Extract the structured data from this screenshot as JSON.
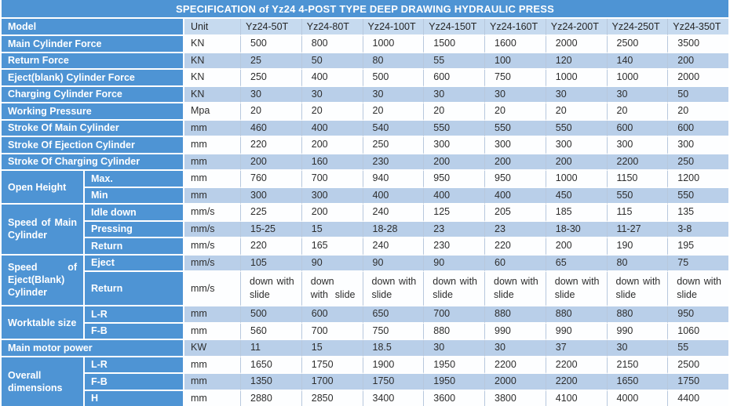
{
  "palette": {
    "c-blue": "#4e94d4",
    "c-hdr": "#c6daef",
    "c-rowblue": "#b9cfe9",
    "c-rowwhite": "#fdfeff",
    "c-grid": "#b7c8dd",
    "c-text": "#2d2d2d"
  },
  "title": "SPECIFICATION of Yz24 4-POST TYPE DEEP DRAWING HYDRAULIC PRESS",
  "header": {
    "model_label": "Model",
    "unit_label": "Unit",
    "models": [
      "Yz24-50T",
      "Yz24-80T",
      "Yz24-100T",
      "Yz24-150T",
      "Yz24-160T",
      "Yz24-200T",
      "Yz24-250T",
      "Yz24-350T"
    ]
  },
  "rows": [
    {
      "label": "Main Cylinder Force",
      "unit": "KN",
      "values": [
        "500",
        "800",
        "1000",
        "1500",
        "1600",
        "2000",
        "2500",
        "3500"
      ]
    },
    {
      "label": "Return Force",
      "unit": "KN",
      "values": [
        "25",
        "50",
        "80",
        "55",
        "100",
        "120",
        "140",
        "200"
      ]
    },
    {
      "label": "Eject(blank) Cylinder Force",
      "unit": "KN",
      "values": [
        "250",
        "400",
        "500",
        "600",
        "750",
        "1000",
        "1000",
        "2000"
      ]
    },
    {
      "label": "Charging Cylinder Force",
      "unit": "KN",
      "values": [
        "30",
        "30",
        "30",
        "30",
        "30",
        "30",
        "30",
        "50"
      ]
    },
    {
      "label": "Working Pressure",
      "unit": "Mpa",
      "values": [
        "20",
        "20",
        "20",
        "20",
        "20",
        "20",
        "20",
        "20"
      ]
    },
    {
      "label": "Stroke Of Main Cylinder",
      "unit": "mm",
      "values": [
        "460",
        "400",
        "540",
        "550",
        "550",
        "550",
        "600",
        "600"
      ]
    },
    {
      "label": "Stroke Of Ejection Cylinder",
      "unit": "mm",
      "values": [
        "220",
        "200",
        "250",
        "300",
        "300",
        "300",
        "300",
        "300"
      ]
    },
    {
      "label": "Stroke Of Charging Cylinder",
      "unit": "mm",
      "values": [
        "200",
        "160",
        "230",
        "200",
        "200",
        "200",
        "2200",
        "250"
      ]
    },
    {
      "group": "Open Height",
      "rowspan": 2,
      "sub": "Max.",
      "unit": "mm",
      "values": [
        "760",
        "700",
        "940",
        "950",
        "950",
        "1000",
        "1150",
        "1200"
      ]
    },
    {
      "sub": "Min",
      "unit": "mm",
      "values": [
        "300",
        "300",
        "400",
        "400",
        "400",
        "450",
        "550",
        "550"
      ]
    },
    {
      "group": "Speed of Main Cylinder",
      "rowspan": 3,
      "sub": "Idle down",
      "unit": "mm/s",
      "values": [
        "225",
        "200",
        "240",
        "125",
        "205",
        "185",
        "115",
        "135"
      ]
    },
    {
      "sub": "Pressing",
      "unit": "mm/s",
      "values": [
        "15-25",
        "15",
        "18-28",
        "23",
        "23",
        "18-30",
        "11-27",
        "3-8"
      ]
    },
    {
      "sub": "Return",
      "unit": "mm/s",
      "values": [
        "220",
        "165",
        "240",
        "230",
        "220",
        "200",
        "190",
        "195"
      ]
    },
    {
      "group": "Speed of Eject(Blank) Cylinder",
      "rowspan": 2,
      "sub": "Eject",
      "unit": "mm/s",
      "values": [
        "105",
        "90",
        "90",
        "90",
        "60",
        "65",
        "80",
        "75"
      ]
    },
    {
      "sub": "Return",
      "unit": "mm/s",
      "tall": true,
      "justify": true,
      "values": [
        "down with\nslide",
        "down\nwith slide",
        "down with\nslide",
        "down with\nslide",
        "down with\nslide",
        "down with\nslide",
        "down with\nslide",
        "down with\nslide"
      ]
    },
    {
      "group": "Worktable size",
      "rowspan": 2,
      "sub": "L-R",
      "unit": "mm",
      "values": [
        "500",
        "600",
        "650",
        "700",
        "880",
        "880",
        "880",
        "950"
      ]
    },
    {
      "sub": "F-B",
      "unit": "mm",
      "values": [
        "560",
        "700",
        "750",
        "880",
        "990",
        "990",
        "990",
        "1060"
      ]
    },
    {
      "label": "Main motor power",
      "unit": "KW",
      "values": [
        "11",
        "15",
        "18.5",
        "30",
        "30",
        "37",
        "30",
        "55"
      ]
    },
    {
      "group": "Overall dimensions",
      "rowspan": 3,
      "sub": "L-R",
      "unit": "mm",
      "values": [
        "1650",
        "1750",
        "1900",
        "1950",
        "2200",
        "2200",
        "2150",
        "2500"
      ]
    },
    {
      "sub": "F-B",
      "unit": "mm",
      "values": [
        "1350",
        "1700",
        "1750",
        "1950",
        "2000",
        "2200",
        "1650",
        "1750"
      ]
    },
    {
      "sub": "H",
      "unit": "mm",
      "values": [
        "2880",
        "2850",
        "3400",
        "3600",
        "3800",
        "4100",
        "4000",
        "4400"
      ]
    }
  ]
}
